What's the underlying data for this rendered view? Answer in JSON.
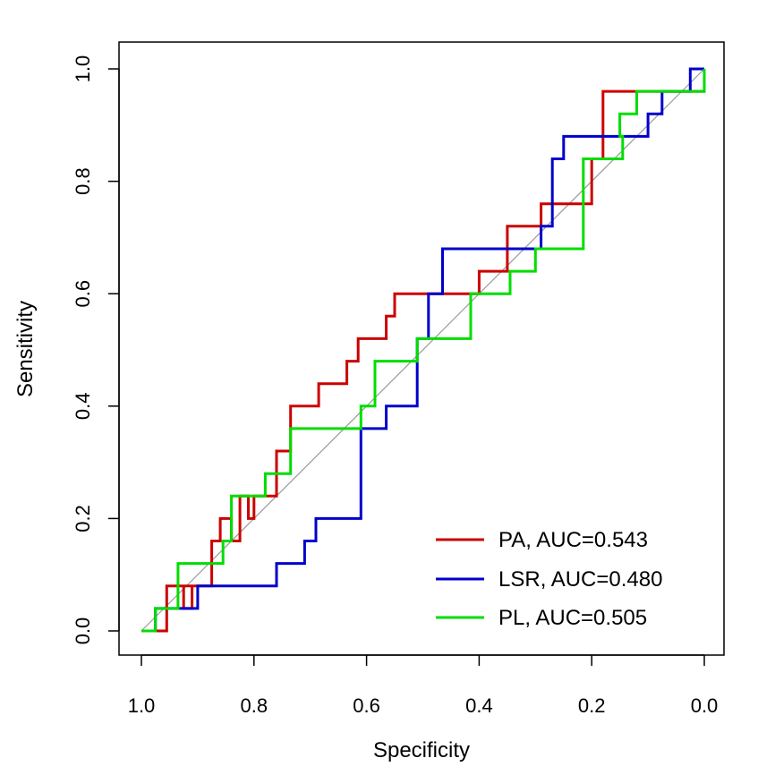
{
  "chart_data": {
    "type": "line",
    "title": "",
    "xlabel": "Specificity",
    "ylabel": "Sensitivity",
    "xlim": [
      1.0,
      0.0
    ],
    "ylim": [
      0.0,
      1.0
    ],
    "x_reversed": true,
    "xticks": [
      1.0,
      0.8,
      0.6,
      0.4,
      0.2,
      0.0
    ],
    "xtick_labels": [
      "1.0",
      "0.8",
      "0.6",
      "0.4",
      "0.2",
      "0.0"
    ],
    "yticks": [
      0.0,
      0.2,
      0.4,
      0.6,
      0.8,
      1.0
    ],
    "ytick_labels": [
      "0.0",
      "0.2",
      "0.4",
      "0.6",
      "0.8",
      "1.0"
    ],
    "grid": false,
    "reference_line": {
      "from": [
        1.0,
        0.0
      ],
      "to": [
        0.0,
        1.0
      ],
      "color": "#9a9a9a"
    },
    "legend_position": "bottom-right",
    "series": [
      {
        "name": "PA",
        "label": "PA, AUC=0.543",
        "auc": 0.543,
        "color": "#cc0000",
        "points": [
          [
            1.0,
            0.0
          ],
          [
            0.955,
            0.0
          ],
          [
            0.955,
            0.08
          ],
          [
            0.91,
            0.08
          ],
          [
            0.91,
            0.04
          ],
          [
            0.925,
            0.04
          ],
          [
            0.925,
            0.08
          ],
          [
            0.875,
            0.08
          ],
          [
            0.875,
            0.16
          ],
          [
            0.86,
            0.16
          ],
          [
            0.86,
            0.2
          ],
          [
            0.84,
            0.2
          ],
          [
            0.84,
            0.16
          ],
          [
            0.825,
            0.16
          ],
          [
            0.825,
            0.24
          ],
          [
            0.81,
            0.24
          ],
          [
            0.81,
            0.2
          ],
          [
            0.8,
            0.2
          ],
          [
            0.8,
            0.24
          ],
          [
            0.76,
            0.24
          ],
          [
            0.76,
            0.32
          ],
          [
            0.735,
            0.32
          ],
          [
            0.735,
            0.4
          ],
          [
            0.685,
            0.4
          ],
          [
            0.685,
            0.44
          ],
          [
            0.635,
            0.44
          ],
          [
            0.635,
            0.48
          ],
          [
            0.615,
            0.48
          ],
          [
            0.615,
            0.52
          ],
          [
            0.565,
            0.52
          ],
          [
            0.565,
            0.56
          ],
          [
            0.55,
            0.56
          ],
          [
            0.55,
            0.6
          ],
          [
            0.46,
            0.6
          ],
          [
            0.46,
            0.6
          ],
          [
            0.4,
            0.6
          ],
          [
            0.4,
            0.64
          ],
          [
            0.35,
            0.64
          ],
          [
            0.35,
            0.72
          ],
          [
            0.29,
            0.72
          ],
          [
            0.29,
            0.76
          ],
          [
            0.22,
            0.76
          ],
          [
            0.2,
            0.76
          ],
          [
            0.2,
            0.84
          ],
          [
            0.18,
            0.84
          ],
          [
            0.18,
            0.96
          ],
          [
            0.12,
            0.96
          ],
          [
            0.0,
            0.96
          ],
          [
            0.0,
            1.0
          ]
        ]
      },
      {
        "name": "LSR",
        "label": "LSR, AUC=0.480",
        "auc": 0.48,
        "color": "#0000cc",
        "points": [
          [
            1.0,
            0.0
          ],
          [
            0.975,
            0.0
          ],
          [
            0.975,
            0.04
          ],
          [
            0.9,
            0.04
          ],
          [
            0.9,
            0.08
          ],
          [
            0.76,
            0.08
          ],
          [
            0.76,
            0.12
          ],
          [
            0.71,
            0.12
          ],
          [
            0.71,
            0.16
          ],
          [
            0.69,
            0.16
          ],
          [
            0.69,
            0.2
          ],
          [
            0.61,
            0.2
          ],
          [
            0.61,
            0.36
          ],
          [
            0.565,
            0.36
          ],
          [
            0.565,
            0.4
          ],
          [
            0.51,
            0.4
          ],
          [
            0.51,
            0.52
          ],
          [
            0.49,
            0.52
          ],
          [
            0.49,
            0.6
          ],
          [
            0.465,
            0.6
          ],
          [
            0.465,
            0.68
          ],
          [
            0.29,
            0.68
          ],
          [
            0.29,
            0.72
          ],
          [
            0.27,
            0.72
          ],
          [
            0.27,
            0.84
          ],
          [
            0.25,
            0.84
          ],
          [
            0.25,
            0.88
          ],
          [
            0.1,
            0.88
          ],
          [
            0.1,
            0.92
          ],
          [
            0.075,
            0.92
          ],
          [
            0.075,
            0.96
          ],
          [
            0.025,
            0.96
          ],
          [
            0.025,
            1.0
          ],
          [
            0.0,
            1.0
          ]
        ]
      },
      {
        "name": "PL",
        "label": "PL, AUC=0.505",
        "auc": 0.505,
        "color": "#00dd00",
        "points": [
          [
            1.0,
            0.0
          ],
          [
            0.975,
            0.0
          ],
          [
            0.975,
            0.04
          ],
          [
            0.935,
            0.04
          ],
          [
            0.935,
            0.12
          ],
          [
            0.855,
            0.12
          ],
          [
            0.855,
            0.16
          ],
          [
            0.84,
            0.16
          ],
          [
            0.84,
            0.24
          ],
          [
            0.78,
            0.24
          ],
          [
            0.78,
            0.28
          ],
          [
            0.735,
            0.28
          ],
          [
            0.735,
            0.36
          ],
          [
            0.61,
            0.36
          ],
          [
            0.61,
            0.4
          ],
          [
            0.585,
            0.4
          ],
          [
            0.585,
            0.48
          ],
          [
            0.51,
            0.48
          ],
          [
            0.51,
            0.52
          ],
          [
            0.415,
            0.52
          ],
          [
            0.415,
            0.6
          ],
          [
            0.345,
            0.6
          ],
          [
            0.345,
            0.64
          ],
          [
            0.3,
            0.64
          ],
          [
            0.3,
            0.68
          ],
          [
            0.215,
            0.68
          ],
          [
            0.215,
            0.84
          ],
          [
            0.145,
            0.84
          ],
          [
            0.145,
            0.88
          ],
          [
            0.15,
            0.88
          ],
          [
            0.15,
            0.92
          ],
          [
            0.12,
            0.92
          ],
          [
            0.12,
            0.96
          ],
          [
            0.0,
            0.96
          ],
          [
            0.0,
            1.0
          ]
        ]
      }
    ]
  }
}
